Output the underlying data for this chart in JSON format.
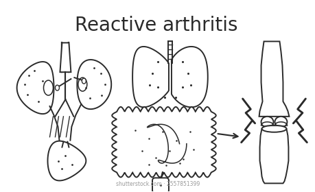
{
  "title": "Reactive arthritis",
  "title_fontsize": 20,
  "bg_color": "#ffffff",
  "line_color": "#2a2a2a",
  "line_width": 1.4,
  "fig_width": 4.6,
  "fig_height": 2.8,
  "watermark": "shutterstock.com · 2557851399"
}
